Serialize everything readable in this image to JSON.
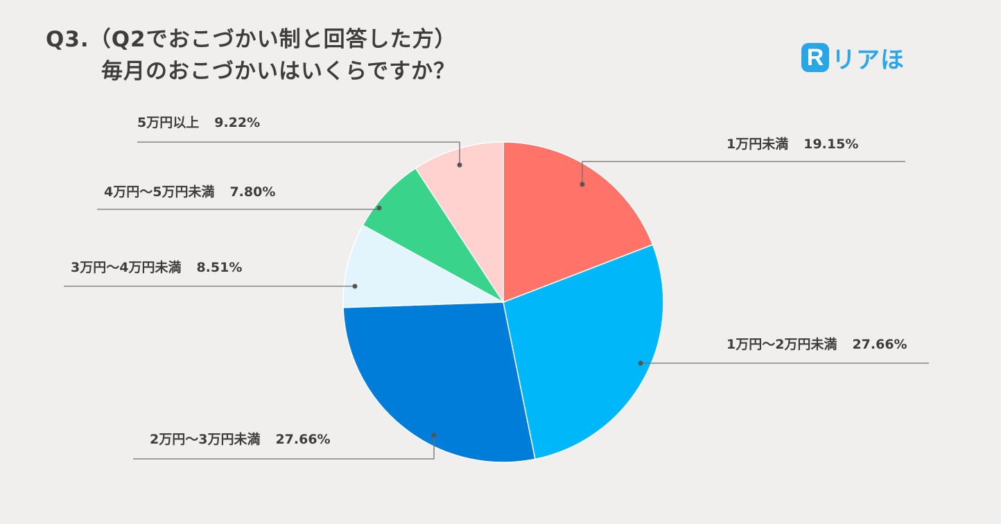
{
  "title": {
    "line1": "Q3.（Q2でおこづかい制と回答した方）",
    "line2": "毎月のおこづかいはいくらですか？"
  },
  "logo": {
    "mark": "R",
    "text": "リアほ",
    "color": "#29a6e8"
  },
  "chart_data": {
    "type": "pie",
    "start_angle_deg": 0,
    "direction": "clockwise",
    "slices": [
      {
        "label": "1万円未満",
        "value": 19.15,
        "display": "19.15%",
        "color": "#ff7369"
      },
      {
        "label": "1万円〜2万円未満",
        "value": 27.66,
        "display": "27.66%",
        "color": "#00b8f9"
      },
      {
        "label": "2万円〜3万円未満",
        "value": 27.66,
        "display": "27.66%",
        "color": "#007dd8"
      },
      {
        "label": "3万円〜4万円未満",
        "value": 8.51,
        "display": "8.51%",
        "color": "#e2f5fc"
      },
      {
        "label": "4万円〜5万円未満",
        "value": 7.8,
        "display": "7.80%",
        "color": "#39d38b"
      },
      {
        "label": "5万円以上",
        "value": 9.22,
        "display": "9.22%",
        "color": "#ffd2cf"
      }
    ]
  }
}
